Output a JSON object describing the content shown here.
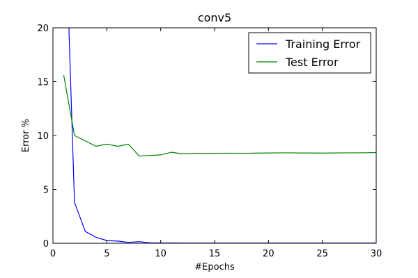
{
  "chart_data": {
    "type": "line",
    "title": "conv5",
    "xlabel": "#Epochs",
    "ylabel": "Error %",
    "xlim": [
      0,
      30
    ],
    "ylim": [
      0,
      20
    ],
    "xticks": [
      0,
      5,
      10,
      15,
      20,
      25,
      30
    ],
    "yticks": [
      0,
      5,
      10,
      15,
      20
    ],
    "grid": false,
    "legend_position": "top-right",
    "series": [
      {
        "name": "Training Error",
        "color": "#0000ff",
        "x": [
          1,
          2,
          3,
          4,
          5,
          6,
          7,
          8,
          9,
          10,
          11,
          12,
          13,
          14,
          15,
          16,
          17,
          18,
          19,
          20,
          21,
          22,
          23,
          24,
          25,
          26,
          27,
          28,
          29,
          30
        ],
        "y": [
          35,
          3.8,
          1.1,
          0.55,
          0.25,
          0.2,
          0.08,
          0.15,
          0.04,
          0.03,
          0.03,
          0.02,
          0.02,
          0.02,
          0.02,
          0.02,
          0.02,
          0.02,
          0.02,
          0.02,
          0.02,
          0.02,
          0.02,
          0.02,
          0.02,
          0.02,
          0.02,
          0.02,
          0.02,
          0.02
        ]
      },
      {
        "name": "Test Error",
        "color": "#008000",
        "x": [
          1,
          2,
          3,
          4,
          5,
          6,
          7,
          8,
          9,
          10,
          11,
          12,
          13,
          14,
          15,
          16,
          17,
          18,
          19,
          20,
          21,
          22,
          23,
          24,
          25,
          26,
          27,
          28,
          29,
          30
        ],
        "y": [
          15.6,
          10.0,
          9.5,
          9.0,
          9.2,
          9.0,
          9.2,
          8.1,
          8.15,
          8.2,
          8.45,
          8.3,
          8.35,
          8.33,
          8.35,
          8.36,
          8.36,
          8.35,
          8.37,
          8.38,
          8.39,
          8.39,
          8.38,
          8.38,
          8.37,
          8.38,
          8.39,
          8.39,
          8.4,
          8.42
        ]
      }
    ]
  }
}
